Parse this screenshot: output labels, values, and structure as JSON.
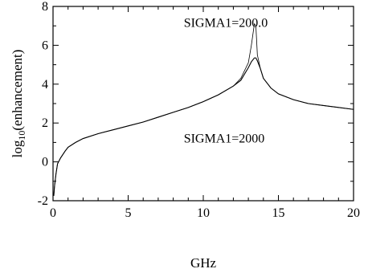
{
  "chart_data": {
    "type": "line",
    "title": "",
    "xlabel": "GHz",
    "ylabel": "log",
    "ylabel_sub": "10",
    "ylabel_rest": "(enhancement)",
    "xlim": [
      0,
      20
    ],
    "ylim": [
      -2,
      8
    ],
    "x_ticks": [
      0,
      5,
      10,
      15,
      20
    ],
    "y_ticks": [
      -2,
      0,
      2,
      4,
      6,
      8
    ],
    "x_tick_labels": [
      "0",
      "5",
      "10",
      "15",
      "20"
    ],
    "y_tick_labels": [
      "-2",
      "0",
      "2",
      "4",
      "6",
      "8"
    ],
    "grid": false,
    "legend": "none",
    "series": [
      {
        "name": "SIGMA1=200.0",
        "color": "#000000",
        "x": [
          0.05,
          0.1,
          0.2,
          0.3,
          0.5,
          0.8,
          1,
          1.5,
          2,
          3,
          4,
          5,
          6,
          7,
          8,
          9,
          10,
          11,
          12,
          12.5,
          13,
          13.2,
          13.4,
          13.5,
          13.6,
          13.8,
          14,
          14.5,
          15,
          16,
          17,
          18,
          19,
          20
        ],
        "y": [
          -1.75,
          -1.25,
          -0.6,
          -0.1,
          0.2,
          0.55,
          0.75,
          1.0,
          1.2,
          1.45,
          1.65,
          1.85,
          2.05,
          2.3,
          2.55,
          2.8,
          3.1,
          3.45,
          3.9,
          4.3,
          5.1,
          6.0,
          7.1,
          7.0,
          5.5,
          4.8,
          4.3,
          3.8,
          3.5,
          3.2,
          3.0,
          2.9,
          2.8,
          2.7
        ]
      },
      {
        "name": "SIGMA1=2000",
        "color": "#000000",
        "x": [
          0.05,
          0.1,
          0.2,
          0.3,
          0.5,
          0.8,
          1,
          1.5,
          2,
          3,
          4,
          5,
          6,
          7,
          8,
          9,
          10,
          11,
          12,
          12.5,
          13,
          13.2,
          13.4,
          13.5,
          13.6,
          13.8,
          14,
          14.5,
          15,
          16,
          17,
          18,
          19,
          20
        ],
        "y": [
          -1.75,
          -1.25,
          -0.6,
          -0.1,
          0.2,
          0.55,
          0.75,
          1.0,
          1.2,
          1.45,
          1.65,
          1.85,
          2.05,
          2.3,
          2.55,
          2.8,
          3.1,
          3.45,
          3.9,
          4.2,
          4.85,
          5.15,
          5.35,
          5.35,
          5.2,
          4.8,
          4.3,
          3.8,
          3.5,
          3.2,
          3.0,
          2.9,
          2.8,
          2.7
        ]
      }
    ],
    "annotations": [
      {
        "text": "SIGMA1=200.0",
        "x": 8.7,
        "y": 6.95
      },
      {
        "text": "SIGMA1=2000",
        "x": 8.7,
        "y": 1.0
      }
    ]
  }
}
